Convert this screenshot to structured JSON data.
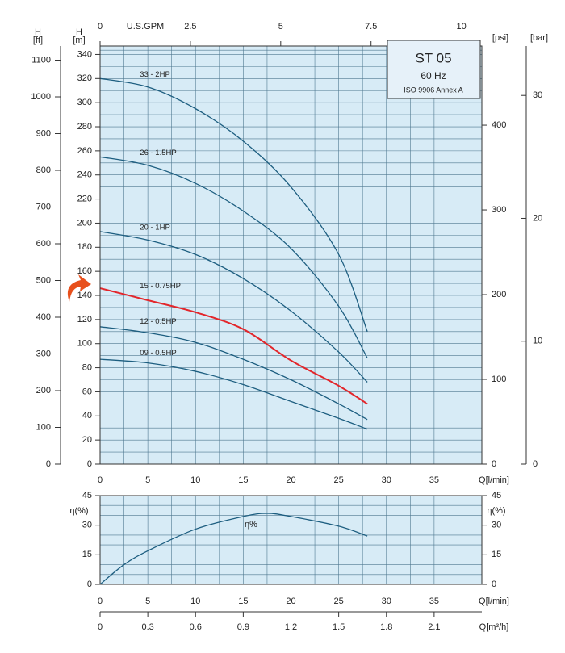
{
  "chart_data": [
    {
      "type": "line",
      "x_label": "Q[l/min]",
      "x": [
        0,
        5,
        10,
        15,
        20,
        25,
        28
      ],
      "xlim": [
        0,
        40
      ],
      "xticks": [
        0,
        5,
        10,
        15,
        20,
        25,
        30,
        35
      ],
      "y_symbol": "H",
      "y_label": "[m]",
      "ylim": [
        0,
        347
      ],
      "yticks": [
        0,
        20,
        40,
        60,
        80,
        100,
        120,
        140,
        160,
        180,
        200,
        220,
        240,
        260,
        280,
        300,
        320,
        340
      ],
      "grid": true,
      "ft_axis": {
        "symbol": "H",
        "label": "[ft]",
        "lim": [
          0,
          1138.5
        ],
        "ticks": [
          0,
          100,
          200,
          300,
          400,
          500,
          600,
          700,
          800,
          900,
          1000,
          1100
        ]
      },
      "psi_axis": {
        "label": "[psi]",
        "lim": [
          0,
          493.4
        ],
        "ticks": [
          0,
          100,
          200,
          300,
          400
        ]
      },
      "bar_axis": {
        "label": "[bar]",
        "lim": [
          0,
          34.02
        ],
        "ticks": [
          0,
          10,
          20,
          30
        ]
      },
      "top_axis": {
        "label": "U.S.GPM",
        "lim": [
          0,
          10.567
        ],
        "ticks": [
          0,
          2.5,
          5,
          7.5,
          10
        ]
      },
      "annotations": {
        "model": "ST 05",
        "frequency": "60 Hz",
        "standard": "ISO 9906 Annex A"
      },
      "series": [
        {
          "name": "33 - 2HP",
          "color": "#1d5e80",
          "values": [
            320,
            313,
            295,
            268,
            230,
            174,
            110
          ]
        },
        {
          "name": "26 - 1.5HP",
          "color": "#1d5e80",
          "values": [
            255,
            248,
            233,
            210,
            179,
            131,
            88
          ]
        },
        {
          "name": "20 - 1HP",
          "color": "#1d5e80",
          "values": [
            193,
            186,
            174,
            154,
            127,
            93,
            68
          ]
        },
        {
          "name": "15 - 0.75HP",
          "color": "#e3262b",
          "values": [
            146,
            136,
            126,
            112,
            86,
            65,
            50
          ]
        },
        {
          "name": "12 - 0.5HP",
          "color": "#1d5e80",
          "values": [
            114,
            109,
            101,
            87,
            70,
            50,
            37
          ]
        },
        {
          "name": "09 - 0.5HP",
          "color": "#1d5e80",
          "values": [
            87,
            84,
            77,
            66,
            52,
            38,
            29
          ]
        }
      ]
    },
    {
      "type": "line",
      "x_label": "Q[l/min]",
      "x": [
        0,
        2.5,
        5,
        10,
        15,
        17.5,
        20,
        25,
        28
      ],
      "xlim": [
        0,
        40
      ],
      "xticks": [
        0,
        5,
        10,
        15,
        20,
        25,
        30,
        35
      ],
      "y_label": "η(%)",
      "ylim": [
        0,
        45
      ],
      "yticks": [
        0,
        15,
        30,
        45
      ],
      "grid": true,
      "bottom_axis": {
        "label": "Q[m³/h]",
        "lim": [
          0,
          2.4
        ],
        "ticks": [
          0,
          0.3,
          0.6,
          0.9,
          1.2,
          1.5,
          1.8,
          2.1
        ]
      },
      "series": [
        {
          "name": "η%",
          "color": "#1d5e80",
          "values": [
            0,
            10,
            17,
            28,
            34.4,
            36,
            34.4,
            29.5,
            24.5
          ]
        }
      ]
    }
  ]
}
